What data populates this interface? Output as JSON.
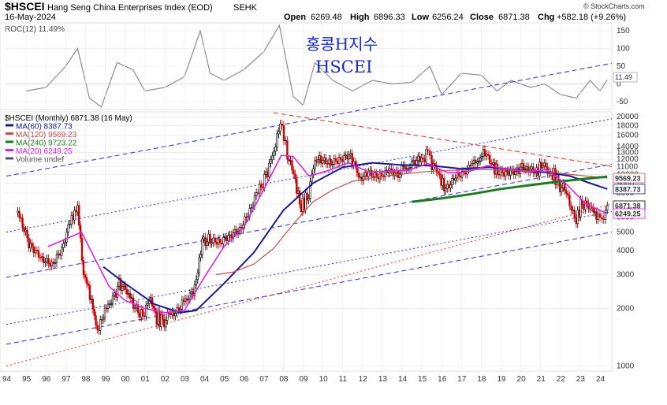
{
  "header": {
    "symbol": "$HSCEI",
    "name": "Hang Seng China Enterprises Index (EOD)",
    "exchange": "SEHK",
    "date": "16-May-2024",
    "open_label": "Open",
    "open": "6269.48",
    "high_label": "High",
    "high": "6896.33",
    "low_label": "Low",
    "low": "6256.24",
    "close_label": "Close",
    "close": "6871.38",
    "chg_label": "Chg",
    "chg": "+582.18 (+9.26%)",
    "credit": "© StockCharts.com"
  },
  "annotation": {
    "line1": "홍콩H지수",
    "line2": "HSCEI"
  },
  "roc_panel": {
    "label": "ROC(12) 11.49%",
    "value_badge": "11.49",
    "ticks": [
      "150",
      "100",
      "50",
      "0",
      "-50"
    ],
    "tick_values": [
      150,
      100,
      50,
      0,
      -50
    ],
    "range": [
      -70,
      170
    ]
  },
  "legend": [
    {
      "text": "$HSCEI (Monthly) 6871.38 (16 May)",
      "color": "#000000"
    },
    {
      "text": "MA(60) 8387.73",
      "color": "#1a1a8c"
    },
    {
      "text": "MA(120) 9569.23",
      "color": "#c0504d"
    },
    {
      "text": "MA(240) 9723.22",
      "color": "#1f7a1f"
    },
    {
      "text": "MA(20) 6249.25",
      "color": "#e020e0"
    },
    {
      "text": "Volume undef",
      "color": "#555555"
    }
  ],
  "price_axis": {
    "ticks": [
      "20000",
      "18000",
      "16000",
      "14000",
      "13000",
      "12000",
      "11000",
      "10000",
      "9000",
      "8000",
      "7000",
      "6000",
      "5000",
      "4000",
      "3000",
      "2000",
      "1000"
    ],
    "tick_values": [
      20000,
      18000,
      16000,
      14000,
      13000,
      12000,
      11000,
      10000,
      9000,
      8000,
      7000,
      6000,
      5000,
      4000,
      3000,
      2000,
      1000
    ],
    "range": [
      950,
      21000
    ],
    "badges": [
      {
        "text": "9569.23",
        "value": 9569.23,
        "bg": "#ffffff",
        "fg": "#c0504d"
      },
      {
        "text": "8387.73",
        "value": 8387.73,
        "bg": "#ffffff",
        "fg": "#1a1a8c"
      },
      {
        "text": "6871.38",
        "value": 6871.38,
        "bg": "#ffffff",
        "fg": "#000000"
      },
      {
        "text": "6249.25",
        "value": 6249.25,
        "bg": "#ffffff",
        "fg": "#e020e0"
      }
    ]
  },
  "x_axis": {
    "labels": [
      "94",
      "95",
      "96",
      "97",
      "98",
      "99",
      "00",
      "01",
      "02",
      "03",
      "04",
      "05",
      "06",
      "07",
      "08",
      "09",
      "10",
      "11",
      "12",
      "13",
      "14",
      "15",
      "16",
      "17",
      "18",
      "19",
      "20",
      "21",
      "22",
      "23",
      "24"
    ],
    "years": [
      1994,
      1995,
      1996,
      1997,
      1998,
      1999,
      2000,
      2001,
      2002,
      2003,
      2004,
      2005,
      2006,
      2007,
      2008,
      2009,
      2010,
      2011,
      2012,
      2013,
      2014,
      2015,
      2016,
      2017,
      2018,
      2019,
      2020,
      2021,
      2022,
      2023,
      2024
    ],
    "range": [
      1994.0,
      2024.6
    ]
  },
  "colors": {
    "candle_up": "#000000",
    "candle_down": "#cc0000",
    "ma60": "#1a1a8c",
    "ma120": "#c0504d",
    "ma240": "#1f7a1f",
    "ma20": "#e020e0",
    "roc": "#8c8c8c",
    "channel": "#3c3cdc",
    "resistance": "#e04030",
    "support": "#e04030"
  },
  "chart_data": {
    "type": "line",
    "title": "$HSCEI Hang Seng China Enterprises Index (EOD) SEHK",
    "y_scale": "log",
    "ylim": [
      950,
      21000
    ],
    "series": [
      {
        "name": "$HSCEI (Monthly)",
        "x": [
          1994.5,
          1994.9,
          1995.3,
          1995.8,
          1996.3,
          1996.8,
          1997.3,
          1997.6,
          1997.9,
          1998.3,
          1998.6,
          1998.9,
          1999.3,
          1999.7,
          2000.1,
          2000.5,
          2000.9,
          2001.3,
          2001.6,
          2001.9,
          2002.3,
          2002.8,
          2003.2,
          2003.6,
          2003.9,
          2004.3,
          2004.8,
          2005.3,
          2005.8,
          2006.3,
          2006.8,
          2007.2,
          2007.6,
          2007.85,
          2008.2,
          2008.6,
          2008.9,
          2009.2,
          2009.6,
          2009.9,
          2010.4,
          2010.9,
          2011.4,
          2011.8,
          2012.3,
          2012.8,
          2013.3,
          2013.8,
          2014.4,
          2014.9,
          2015.3,
          2015.5,
          2015.9,
          2016.2,
          2016.7,
          2017.2,
          2017.8,
          2018.1,
          2018.6,
          2018.9,
          2019.4,
          2019.9,
          2020.3,
          2020.8,
          2021.1,
          2021.6,
          2021.9,
          2022.3,
          2022.8,
          2023.1,
          2023.5,
          2023.9,
          2024.1,
          2024.37
        ],
        "values": [
          6600,
          5000,
          4200,
          3600,
          3300,
          3900,
          5800,
          6800,
          3000,
          2200,
          1500,
          1900,
          2100,
          2800,
          2400,
          2000,
          1900,
          2200,
          1800,
          1700,
          1900,
          2100,
          2200,
          2800,
          4500,
          4700,
          4600,
          4900,
          5200,
          6400,
          8500,
          10500,
          13500,
          19000,
          13000,
          9000,
          6800,
          7500,
          11500,
          12500,
          12000,
          12500,
          13000,
          9500,
          10500,
          10000,
          11000,
          10500,
          10800,
          11500,
          13500,
          11500,
          9500,
          8500,
          10000,
          10800,
          11500,
          12800,
          10800,
          10500,
          10700,
          11000,
          10300,
          10100,
          11800,
          10200,
          9000,
          8000,
          5800,
          7200,
          6500,
          6200,
          5800,
          6871.38
        ]
      },
      {
        "name": "MA(60)",
        "x": [
          1998.9,
          2000.0,
          2001.5,
          2002.8,
          2003.6,
          2005.0,
          2006.5,
          2008.0,
          2009.5,
          2011.0,
          2012.5,
          2014.0,
          2015.5,
          2017.0,
          2018.5,
          2020.0,
          2021.5,
          2022.5,
          2023.5,
          2024.37
        ],
        "values": [
          3300,
          2700,
          2100,
          1900,
          1950,
          2700,
          3900,
          6500,
          9000,
          10900,
          11500,
          11200,
          11100,
          10700,
          10900,
          10500,
          10200,
          9800,
          9000,
          8387.73
        ]
      },
      {
        "name": "MA(120)",
        "x": [
          2004.6,
          2005.5,
          2006.5,
          2007.5,
          2008.5,
          2009.5,
          2010.5,
          2011.5,
          2012.5,
          2013.5,
          2015.0,
          2016.5,
          2018.0,
          2019.5,
          2021.0,
          2022.5,
          2024.37
        ],
        "values": [
          3000,
          3100,
          3400,
          4100,
          5500,
          7200,
          8300,
          9200,
          9600,
          9900,
          10300,
          10500,
          10600,
          10500,
          10400,
          10000,
          9569.23
        ]
      },
      {
        "name": "MA(240)",
        "x": [
          2014.5,
          2016.0,
          2017.5,
          2019.0,
          2020.5,
          2022.0,
          2023.5,
          2024.37
        ],
        "values": [
          7200,
          7500,
          7900,
          8400,
          8800,
          9200,
          9550,
          9723.22
        ]
      },
      {
        "name": "MA(20)",
        "x": [
          1996.1,
          1997.0,
          1997.8,
          1998.5,
          1999.2,
          2000.0,
          2001.0,
          2002.0,
          2003.0,
          2004.0,
          2005.0,
          2006.0,
          2007.0,
          2007.9,
          2008.5,
          2009.3,
          2010.3,
          2011.3,
          2012.3,
          2013.3,
          2014.3,
          2015.3,
          2016.3,
          2017.3,
          2018.3,
          2019.3,
          2020.3,
          2021.3,
          2022.3,
          2023.3,
          2024.37
        ],
        "values": [
          4200,
          4600,
          5000,
          3600,
          2600,
          2200,
          2000,
          1900,
          1950,
          2900,
          4200,
          5300,
          8300,
          12600,
          12400,
          9800,
          10500,
          11500,
          10300,
          10400,
          10500,
          11400,
          10200,
          10300,
          11100,
          10700,
          10300,
          10600,
          8900,
          7000,
          6249.25
        ]
      },
      {
        "name": "ROC(12)",
        "x": [
          1995.0,
          1996.0,
          1997.0,
          1997.6,
          1998.2,
          1998.8,
          1999.6,
          2000.4,
          2001.0,
          2002.0,
          2003.0,
          2003.8,
          2004.3,
          2005.0,
          2006.0,
          2007.0,
          2007.8,
          2008.5,
          2009.0,
          2009.6,
          2010.5,
          2011.5,
          2012.5,
          2013.5,
          2014.5,
          2015.4,
          2016.0,
          2017.0,
          2018.0,
          2018.8,
          2019.5,
          2020.5,
          2021.2,
          2022.0,
          2022.8,
          2023.5,
          2024.0,
          2024.37
        ],
        "values": [
          -20,
          -10,
          50,
          100,
          -40,
          -65,
          60,
          40,
          -20,
          -10,
          20,
          150,
          30,
          10,
          40,
          90,
          165,
          -35,
          -60,
          60,
          10,
          -20,
          10,
          0,
          5,
          50,
          -30,
          30,
          25,
          -20,
          10,
          -10,
          0,
          -30,
          -40,
          10,
          -20,
          11.49
        ]
      }
    ],
    "trend_lines": [
      {
        "name": "upper channel",
        "style": "dashed",
        "points": [
          [
            1994.0,
            9800
          ],
          [
            2024.6,
            38000
          ]
        ]
      },
      {
        "name": "channel",
        "style": "dotted",
        "points": [
          [
            1994.0,
            5000
          ],
          [
            2024.6,
            19500
          ]
        ]
      },
      {
        "name": "mid channel",
        "style": "dashed",
        "points": [
          [
            1994.0,
            2900
          ],
          [
            2024.6,
            11300
          ]
        ]
      },
      {
        "name": "lower mid channel",
        "style": "dotted",
        "points": [
          [
            1994.0,
            1650
          ],
          [
            2024.6,
            6400
          ]
        ]
      },
      {
        "name": "lower channel",
        "style": "dashed",
        "points": [
          [
            1994.0,
            1300
          ],
          [
            2024.6,
            5000
          ]
        ]
      },
      {
        "name": "resistance",
        "style": "dashed",
        "points": [
          [
            2007.5,
            21000
          ],
          [
            2024.6,
            11000
          ]
        ]
      },
      {
        "name": "support",
        "style": "dotted",
        "points": [
          [
            1994.0,
            1000
          ],
          [
            2024.6,
            7000
          ]
        ]
      }
    ]
  }
}
